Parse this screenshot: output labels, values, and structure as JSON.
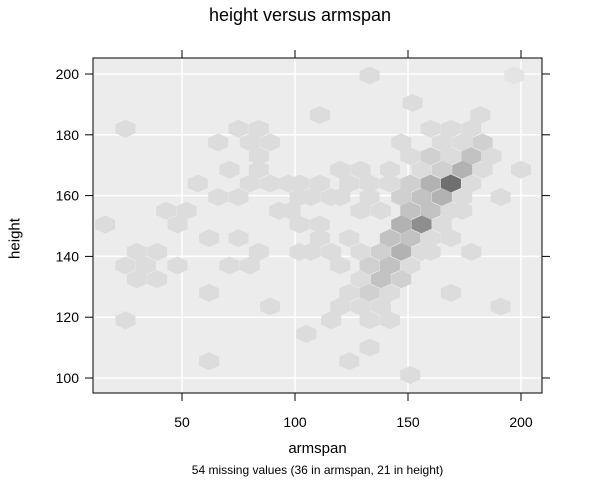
{
  "chart_data": {
    "type": "heatmap",
    "subtype": "hexbin",
    "title": "height versus armspan",
    "xlabel": "armspan",
    "ylabel": "height",
    "footnote": "54 missing values (36 in armspan, 21 in height)",
    "xlim": [
      12,
      209
    ],
    "ylim": [
      95,
      205
    ],
    "xticks": [
      50,
      100,
      150,
      200
    ],
    "yticks": [
      100,
      120,
      140,
      160,
      180,
      200
    ],
    "grid": true,
    "legend": null,
    "colors": {
      "panel_bg": "#ececec",
      "grid": "#ffffff",
      "shade_scale": [
        "#e4e4e4",
        "#dcdcdc",
        "#d0d0d0",
        "#c2c2c2",
        "#b2b2b2",
        "#8e8e8e",
        "#6f6f6f"
      ]
    },
    "bins": [
      {
        "x": 197,
        "y": 199.5,
        "level": 0
      },
      {
        "x": 25,
        "y": 182,
        "level": 1
      },
      {
        "x": 133,
        "y": 199.5,
        "level": 1
      },
      {
        "x": 152,
        "y": 190.5,
        "level": 1
      },
      {
        "x": 111,
        "y": 186.5,
        "level": 1
      },
      {
        "x": 75,
        "y": 182,
        "level": 1
      },
      {
        "x": 84,
        "y": 182,
        "level": 1
      },
      {
        "x": 66,
        "y": 177.5,
        "level": 1
      },
      {
        "x": 80,
        "y": 177.5,
        "level": 1
      },
      {
        "x": 89,
        "y": 177.5,
        "level": 1
      },
      {
        "x": 84,
        "y": 173,
        "level": 1
      },
      {
        "x": 71,
        "y": 168.5,
        "level": 1
      },
      {
        "x": 84,
        "y": 168.5,
        "level": 1
      },
      {
        "x": 80,
        "y": 164,
        "level": 1
      },
      {
        "x": 89,
        "y": 164,
        "level": 1
      },
      {
        "x": 97,
        "y": 164,
        "level": 1
      },
      {
        "x": 57,
        "y": 164,
        "level": 1
      },
      {
        "x": 75,
        "y": 159.5,
        "level": 1
      },
      {
        "x": 66,
        "y": 159.5,
        "level": 1
      },
      {
        "x": 102,
        "y": 159.5,
        "level": 1
      },
      {
        "x": 102,
        "y": 164,
        "level": 1
      },
      {
        "x": 111,
        "y": 164,
        "level": 1
      },
      {
        "x": 120,
        "y": 168.5,
        "level": 1
      },
      {
        "x": 129,
        "y": 168.5,
        "level": 1
      },
      {
        "x": 107,
        "y": 159.5,
        "level": 1
      },
      {
        "x": 116,
        "y": 159.5,
        "level": 1
      },
      {
        "x": 124,
        "y": 164,
        "level": 1
      },
      {
        "x": 133,
        "y": 164,
        "level": 1
      },
      {
        "x": 142,
        "y": 164,
        "level": 1
      },
      {
        "x": 133,
        "y": 159.5,
        "level": 1
      },
      {
        "x": 120,
        "y": 159.5,
        "level": 1
      },
      {
        "x": 98,
        "y": 155,
        "level": 1
      },
      {
        "x": 111,
        "y": 150.5,
        "level": 1
      },
      {
        "x": 129,
        "y": 155,
        "level": 1
      },
      {
        "x": 138,
        "y": 155,
        "level": 1
      },
      {
        "x": 147,
        "y": 159.5,
        "level": 2
      },
      {
        "x": 151,
        "y": 164,
        "level": 2
      },
      {
        "x": 142,
        "y": 168.5,
        "level": 1
      },
      {
        "x": 156,
        "y": 168.5,
        "level": 1
      },
      {
        "x": 147,
        "y": 177.5,
        "level": 1
      },
      {
        "x": 160,
        "y": 182,
        "level": 1
      },
      {
        "x": 169,
        "y": 182,
        "level": 1
      },
      {
        "x": 178,
        "y": 182,
        "level": 1
      },
      {
        "x": 182,
        "y": 186.5,
        "level": 1
      },
      {
        "x": 165,
        "y": 177.5,
        "level": 1
      },
      {
        "x": 174,
        "y": 177.5,
        "level": 1
      },
      {
        "x": 183,
        "y": 177.5,
        "level": 2
      },
      {
        "x": 160,
        "y": 173,
        "level": 2
      },
      {
        "x": 169,
        "y": 173,
        "level": 1
      },
      {
        "x": 178,
        "y": 173,
        "level": 3
      },
      {
        "x": 187,
        "y": 173,
        "level": 1
      },
      {
        "x": 165,
        "y": 168.5,
        "level": 2
      },
      {
        "x": 174,
        "y": 168.5,
        "level": 4
      },
      {
        "x": 183,
        "y": 168.5,
        "level": 1
      },
      {
        "x": 151,
        "y": 173,
        "level": 1
      },
      {
        "x": 200,
        "y": 168.5,
        "level": 1
      },
      {
        "x": 160,
        "y": 164,
        "level": 4
      },
      {
        "x": 169,
        "y": 164,
        "level": 6
      },
      {
        "x": 178,
        "y": 164,
        "level": 1
      },
      {
        "x": 156,
        "y": 159.5,
        "level": 3
      },
      {
        "x": 165,
        "y": 159.5,
        "level": 4
      },
      {
        "x": 174,
        "y": 159.5,
        "level": 1
      },
      {
        "x": 191,
        "y": 159.5,
        "level": 1
      },
      {
        "x": 151,
        "y": 155,
        "level": 3
      },
      {
        "x": 160,
        "y": 155,
        "level": 3
      },
      {
        "x": 169,
        "y": 155,
        "level": 1
      },
      {
        "x": 147,
        "y": 150.5,
        "level": 4
      },
      {
        "x": 156,
        "y": 150.5,
        "level": 5
      },
      {
        "x": 165,
        "y": 150.5,
        "level": 1
      },
      {
        "x": 142,
        "y": 146,
        "level": 3
      },
      {
        "x": 151,
        "y": 146,
        "level": 3
      },
      {
        "x": 160,
        "y": 146,
        "level": 1
      },
      {
        "x": 169,
        "y": 146,
        "level": 1
      },
      {
        "x": 138,
        "y": 141.5,
        "level": 2
      },
      {
        "x": 147,
        "y": 141.5,
        "level": 4
      },
      {
        "x": 156,
        "y": 141.5,
        "level": 1
      },
      {
        "x": 133,
        "y": 137,
        "level": 2
      },
      {
        "x": 142,
        "y": 137,
        "level": 3
      },
      {
        "x": 151,
        "y": 137,
        "level": 1
      },
      {
        "x": 129,
        "y": 132.5,
        "level": 1
      },
      {
        "x": 138,
        "y": 132.5,
        "level": 3
      },
      {
        "x": 147,
        "y": 132.5,
        "level": 2
      },
      {
        "x": 124,
        "y": 128,
        "level": 1
      },
      {
        "x": 133,
        "y": 128,
        "level": 2
      },
      {
        "x": 142,
        "y": 128,
        "level": 1
      },
      {
        "x": 120,
        "y": 123.5,
        "level": 1
      },
      {
        "x": 129,
        "y": 123.5,
        "level": 1
      },
      {
        "x": 138,
        "y": 123.5,
        "level": 1
      },
      {
        "x": 120,
        "y": 137,
        "level": 1
      },
      {
        "x": 129,
        "y": 141.5,
        "level": 1
      },
      {
        "x": 124,
        "y": 146,
        "level": 1
      },
      {
        "x": 116,
        "y": 141.5,
        "level": 1
      },
      {
        "x": 107,
        "y": 141.5,
        "level": 1
      },
      {
        "x": 111,
        "y": 146,
        "level": 1
      },
      {
        "x": 102,
        "y": 150.5,
        "level": 1
      },
      {
        "x": 133,
        "y": 119,
        "level": 1
      },
      {
        "x": 142,
        "y": 119,
        "level": 1
      },
      {
        "x": 133,
        "y": 110,
        "level": 1
      },
      {
        "x": 124,
        "y": 105.5,
        "level": 1
      },
      {
        "x": 105,
        "y": 114.5,
        "level": 1
      },
      {
        "x": 116,
        "y": 119,
        "level": 1
      },
      {
        "x": 151,
        "y": 101,
        "level": 1
      },
      {
        "x": 160,
        "y": 141.5,
        "level": 1
      },
      {
        "x": 178,
        "y": 141.5,
        "level": 1
      },
      {
        "x": 169,
        "y": 128,
        "level": 1
      },
      {
        "x": 191,
        "y": 123.5,
        "level": 1
      },
      {
        "x": 174,
        "y": 155,
        "level": 1
      },
      {
        "x": 89,
        "y": 123.5,
        "level": 1
      },
      {
        "x": 25,
        "y": 119,
        "level": 1
      },
      {
        "x": 62,
        "y": 128,
        "level": 1
      },
      {
        "x": 62,
        "y": 105.5,
        "level": 1
      },
      {
        "x": 25,
        "y": 137,
        "level": 1
      },
      {
        "x": 30,
        "y": 141.5,
        "level": 1
      },
      {
        "x": 39,
        "y": 141.5,
        "level": 1
      },
      {
        "x": 34,
        "y": 137,
        "level": 1
      },
      {
        "x": 48,
        "y": 137,
        "level": 1
      },
      {
        "x": 30,
        "y": 132.5,
        "level": 1
      },
      {
        "x": 39,
        "y": 132.5,
        "level": 1
      },
      {
        "x": 16,
        "y": 150.5,
        "level": 1
      },
      {
        "x": 43,
        "y": 155,
        "level": 1
      },
      {
        "x": 52,
        "y": 155,
        "level": 1
      },
      {
        "x": 48,
        "y": 150.5,
        "level": 1
      },
      {
        "x": 62,
        "y": 146,
        "level": 1
      },
      {
        "x": 71,
        "y": 137,
        "level": 1
      },
      {
        "x": 80,
        "y": 137,
        "level": 1
      },
      {
        "x": 84,
        "y": 141.5,
        "level": 1
      },
      {
        "x": 75,
        "y": 146,
        "level": 1
      },
      {
        "x": 102,
        "y": 141.5,
        "level": 1
      },
      {
        "x": 93,
        "y": 155,
        "level": 1
      }
    ]
  },
  "title": "height versus armspan",
  "xlabel": "armspan",
  "ylabel": "height",
  "footnote": "54 missing values (36 in armspan, 21 in height)"
}
